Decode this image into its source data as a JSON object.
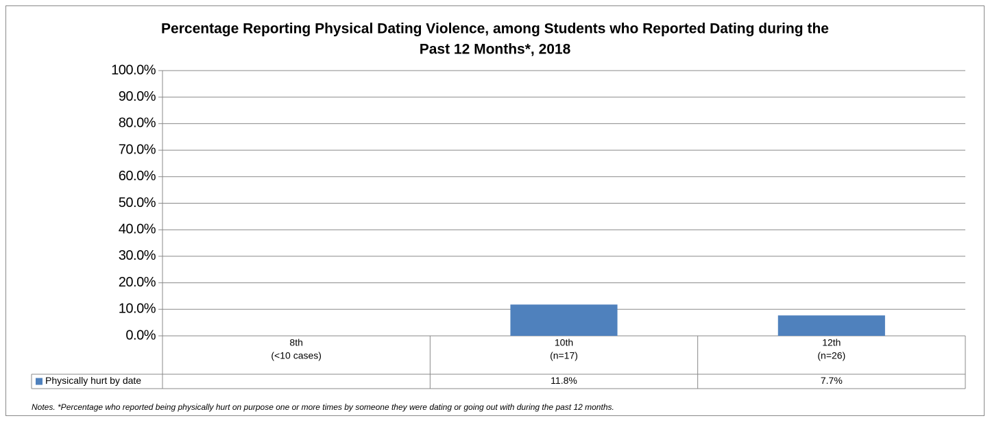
{
  "chart_data": {
    "type": "bar",
    "title": [
      "Percentage Reporting Physical Dating Violence, among Students who Reported Dating during the",
      "Past 12 Months*, 2018"
    ],
    "categories": [
      [
        "8th",
        "(<10 cases)"
      ],
      [
        "10th",
        "(n=17)"
      ],
      [
        "12th",
        "(n=26)"
      ]
    ],
    "series": [
      {
        "name": "Physically hurt by date",
        "color": "#4f81bd",
        "values": [
          null,
          11.8,
          7.7
        ],
        "value_labels": [
          null,
          "11.8%",
          "7.7%"
        ]
      }
    ],
    "ylim": [
      0,
      100
    ],
    "yticks": [
      {
        "value": 0,
        "label": "0.0%"
      },
      {
        "value": 10,
        "label": "10.0%"
      },
      {
        "value": 20,
        "label": "20.0%"
      },
      {
        "value": 30,
        "label": "30.0%"
      },
      {
        "value": 40,
        "label": "40.0%"
      },
      {
        "value": 50,
        "label": "50.0%"
      },
      {
        "value": 60,
        "label": "60.0%"
      },
      {
        "value": 70,
        "label": "70.0%"
      },
      {
        "value": 80,
        "label": "80.0%"
      },
      {
        "value": 90,
        "label": "90.0%"
      },
      {
        "value": 100,
        "label": "100.0%"
      }
    ],
    "grid": true,
    "note": "Notes. *Percentage who reported being physically hurt on purpose one or more times by someone they were dating or going out with during the past 12 months."
  }
}
